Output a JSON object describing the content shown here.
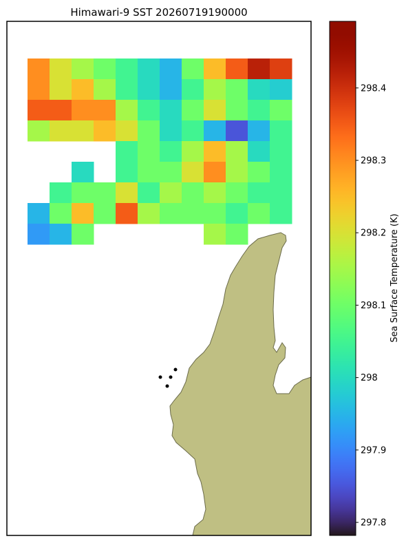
{
  "chart_data": {
    "type": "heatmap",
    "title": "Himawari-9 SST 20260719190000",
    "colorbar_label": "Sea Surface Temperature (K)",
    "colormap": "turbo",
    "clim": [
      297.782,
      298.492
    ],
    "cticks": [
      297.8,
      297.9,
      298.0,
      298.1,
      298.2,
      298.3,
      298.4
    ],
    "values": [
      [
        298.3,
        298.2,
        298.15,
        298.1,
        298.05,
        298.0,
        297.95,
        298.1,
        298.25,
        298.35,
        298.42,
        298.38
      ],
      [
        298.3,
        298.2,
        298.25,
        298.15,
        298.05,
        298.0,
        297.95,
        298.05,
        298.15,
        298.1,
        298.0,
        297.98
      ],
      [
        298.35,
        298.35,
        298.3,
        298.3,
        298.15,
        298.05,
        298.0,
        298.1,
        298.2,
        298.1,
        298.05,
        298.1
      ],
      [
        298.15,
        298.2,
        298.2,
        298.25,
        298.2,
        298.1,
        298.0,
        298.05,
        297.95,
        297.85,
        297.95,
        298.05
      ],
      [
        null,
        null,
        null,
        null,
        298.05,
        298.1,
        298.05,
        298.15,
        298.25,
        298.15,
        298.0,
        298.05
      ],
      [
        null,
        null,
        298.0,
        null,
        298.05,
        298.1,
        298.1,
        298.2,
        298.3,
        298.15,
        298.1,
        298.05
      ],
      [
        null,
        298.05,
        298.1,
        298.1,
        298.2,
        298.05,
        298.15,
        298.1,
        298.15,
        298.1,
        298.05,
        298.05
      ],
      [
        297.95,
        298.1,
        298.25,
        298.1,
        298.35,
        298.15,
        298.1,
        298.1,
        298.1,
        298.05,
        298.1,
        298.05
      ],
      [
        297.92,
        297.95,
        298.1,
        null,
        null,
        null,
        null,
        null,
        298.15,
        298.1,
        null,
        null
      ]
    ]
  }
}
